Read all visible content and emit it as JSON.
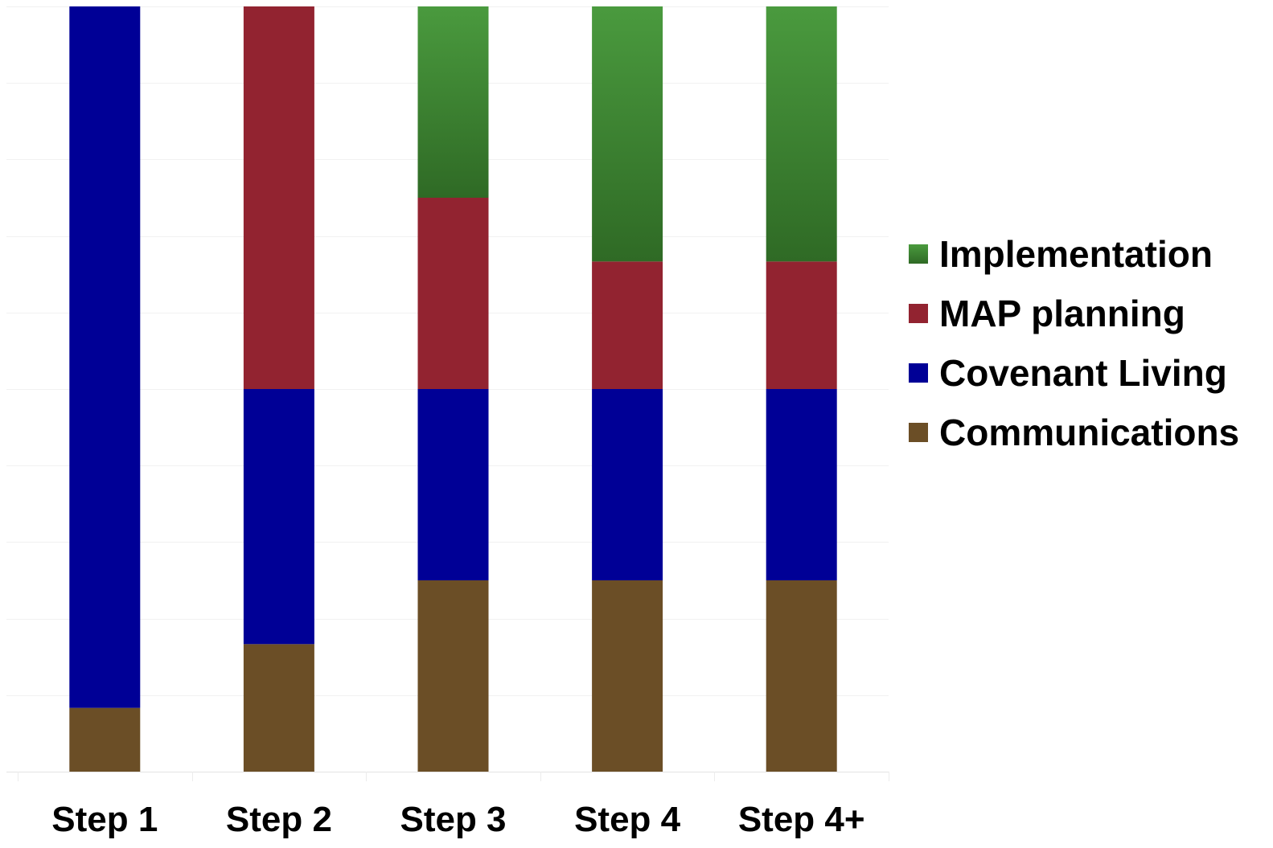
{
  "chart_data": {
    "type": "bar",
    "stacked": true,
    "categories": [
      "Step 1",
      "Step 2",
      "Step 3",
      "Step 4",
      "Step 4+"
    ],
    "series": [
      {
        "name": "Communications",
        "color": "#6b4e26",
        "values": [
          1,
          2,
          3,
          3,
          3
        ]
      },
      {
        "name": "Covenant Living",
        "color": "#000096",
        "values": [
          11,
          4,
          3,
          3,
          3
        ]
      },
      {
        "name": "MAP planning",
        "color": "#922330",
        "values": [
          0,
          6,
          3,
          2,
          2
        ]
      },
      {
        "name": "Implementation",
        "color": "#3b8634",
        "values": [
          0,
          0,
          3,
          4,
          4
        ]
      }
    ],
    "ylim": [
      0,
      12
    ],
    "grid": true,
    "legend": {
      "position": "right",
      "order": [
        "Implementation",
        "MAP planning",
        "Covenant Living",
        "Communications"
      ]
    },
    "title": "",
    "xlabel": "",
    "ylabel": ""
  }
}
